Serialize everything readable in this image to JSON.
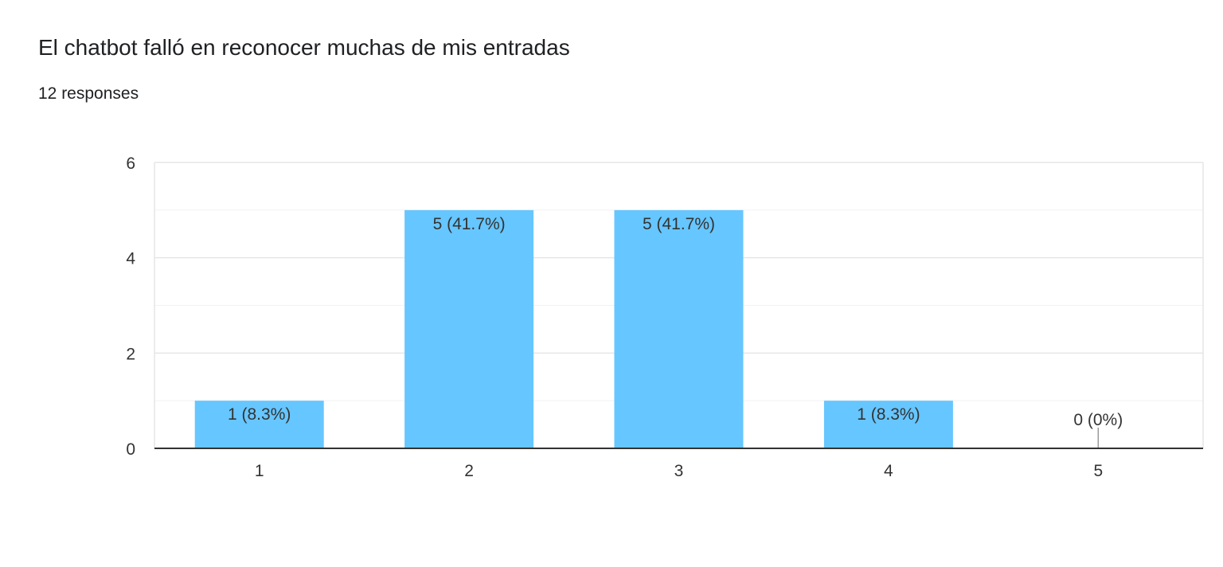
{
  "question": {
    "title": "El chatbot falló en reconocer muchas de mis entradas",
    "responses": "12 responses"
  },
  "colors": {
    "bar": "#66c6ff",
    "grid_major": "#e6e6e6",
    "grid_minor": "#f2f2f2",
    "axis": "#333333",
    "text": "#333333"
  },
  "chart_data": {
    "type": "bar",
    "categories": [
      "1",
      "2",
      "3",
      "4",
      "5"
    ],
    "values": [
      1,
      5,
      5,
      1,
      0
    ],
    "data_labels": [
      "1 (8.3%)",
      "5 (41.7%)",
      "5 (41.7%)",
      "1 (8.3%)",
      "0 (0%)"
    ],
    "y_ticks": [
      "0",
      "2",
      "4",
      "6"
    ],
    "ylim": [
      0,
      6
    ],
    "xlabel": "",
    "ylabel": "",
    "grid": true,
    "legend": "none"
  }
}
